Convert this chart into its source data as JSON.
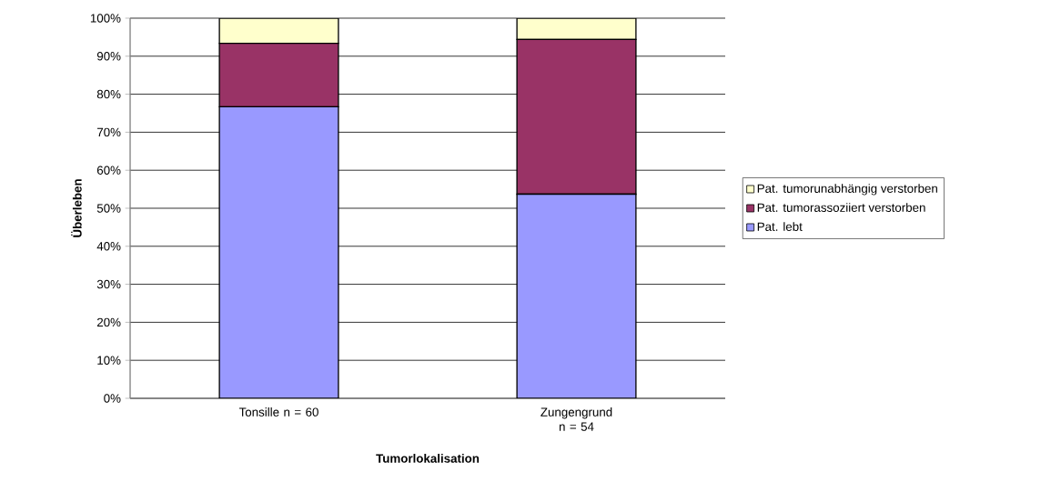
{
  "chart_data": {
    "type": "bar",
    "stacked": true,
    "xlabel": "Tumorlokalisation",
    "ylabel": "Überleben",
    "categories": [
      "Tonsille n = 60",
      "Zungengrund n = 54"
    ],
    "series": [
      {
        "name": "Pat. lebt",
        "color": "#9999ff",
        "values": [
          76.7,
          53.7
        ]
      },
      {
        "name": "Pat. tumorassoziiert verstorben",
        "color": "#993366",
        "values": [
          16.7,
          40.7
        ]
      },
      {
        "name": "Pat. tumorunabhängig verstorben",
        "color": "#ffffcc",
        "values": [
          6.6,
          5.6
        ]
      }
    ],
    "ylim": [
      0,
      100
    ],
    "yticks": [
      {
        "value": 0,
        "label": "0%"
      },
      {
        "value": 10,
        "label": "10%"
      },
      {
        "value": 20,
        "label": "20%"
      },
      {
        "value": 30,
        "label": "30%"
      },
      {
        "value": 40,
        "label": "40%"
      },
      {
        "value": 50,
        "label": "50%"
      },
      {
        "value": 60,
        "label": "60%"
      },
      {
        "value": 70,
        "label": "70%"
      },
      {
        "value": 80,
        "label": "80%"
      },
      {
        "value": 90,
        "label": "90%"
      },
      {
        "value": 100,
        "label": "100%"
      }
    ],
    "grid": "y",
    "legend": "right"
  }
}
